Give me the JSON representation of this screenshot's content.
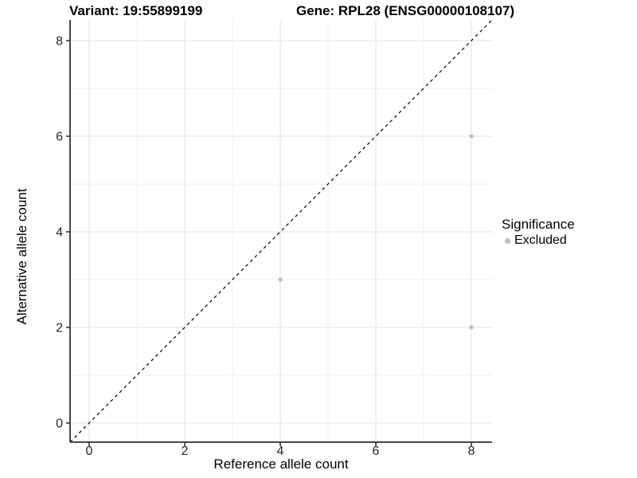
{
  "header": {
    "variant_title": "Variant: 19:55899199",
    "gene_title": "Gene: RPL28 (ENSG00000108107)"
  },
  "chart_data": {
    "type": "scatter",
    "title_left": "Variant: 19:55899199",
    "title_right": "Gene: RPL28 (ENSG00000108107)",
    "xlabel": "Reference allele count",
    "ylabel": "Alternative allele count",
    "xlim": [
      -0.4,
      8.45
    ],
    "ylim": [
      -0.4,
      8.45
    ],
    "xticks": [
      0,
      2,
      4,
      6,
      8
    ],
    "yticks": [
      0,
      2,
      4,
      6,
      8
    ],
    "minor_xticks": [
      1,
      3,
      5,
      7
    ],
    "minor_yticks": [
      1,
      3,
      5,
      7
    ],
    "grid": true,
    "series": [
      {
        "name": "Excluded",
        "color": "#bdbdbd",
        "points": [
          {
            "x": 4,
            "y": 3
          },
          {
            "x": 8,
            "y": 6
          },
          {
            "x": 8,
            "y": 2
          }
        ]
      }
    ],
    "identity_line": {
      "slope": 1,
      "intercept": 0,
      "style": "dashed",
      "color": "#000000"
    },
    "legend": {
      "title": "Significance",
      "position": "right",
      "items": [
        {
          "label": "Excluded",
          "color": "#bdbdbd"
        }
      ]
    },
    "colors": {
      "background": "#ffffff",
      "grid_major": "#e2e2e2",
      "grid_minor": "#efefef",
      "axis_line": "#474747",
      "tick_mark": "#333333",
      "tick_label": "#262626",
      "point": "#bdbdbd"
    }
  }
}
